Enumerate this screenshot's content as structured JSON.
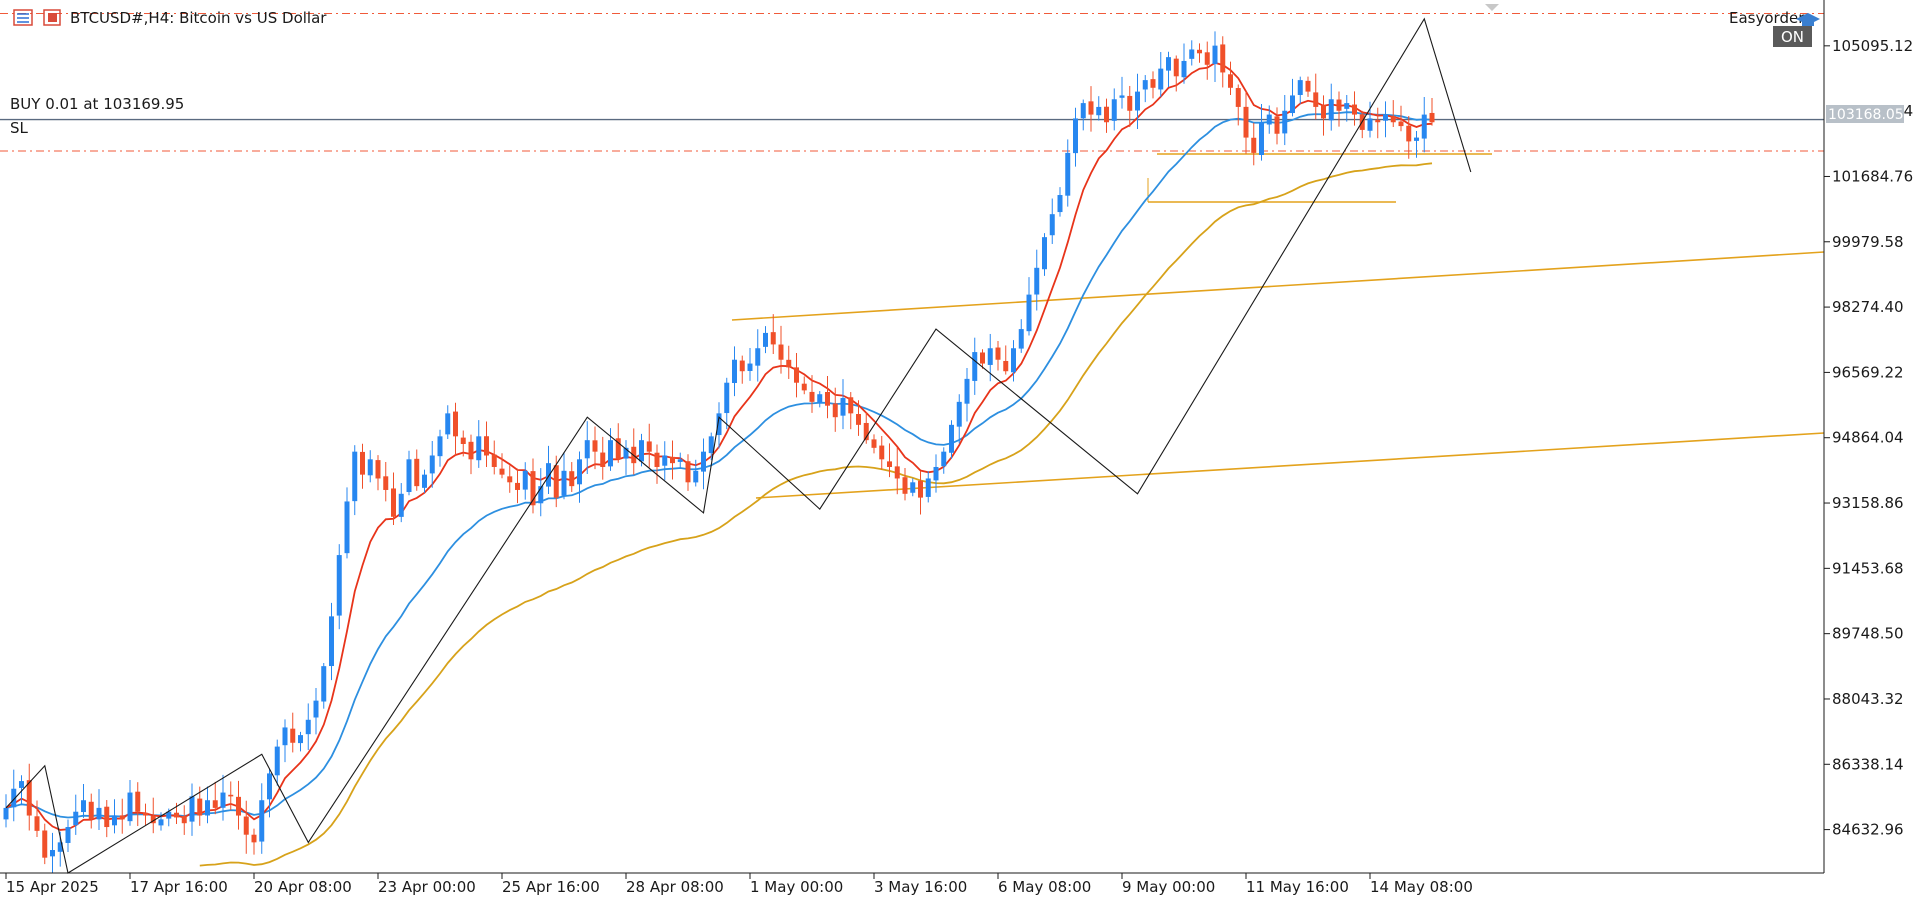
{
  "header": {
    "symbol_title": "BTCUSD#,H4:  Bitcoin vs US Dollar",
    "ea_name": "Easyorder",
    "on_badge": "ON"
  },
  "order_lines": {
    "buy_label": "BUY 0.01 at 103169.95",
    "sl_label": "SL",
    "price_tag": "103168.05",
    "buy_price": 103169.95,
    "sl_price": 102350,
    "tp_price": 105940
  },
  "colors": {
    "bull": "#2787f0",
    "bear": "#f0502a",
    "ma_fast": "#e8341a",
    "ma_mid": "#2d8fe0",
    "ma_slow": "#d7a21a",
    "zigzag": "#1a1a1a",
    "channel": "#e3a21c",
    "order_line": "#5a6a80",
    "dashed": "#f05a3a"
  },
  "chart_data": {
    "type": "candlestick",
    "title": "BTCUSD#,H4:  Bitcoin vs US Dollar",
    "ylim": [
      83500,
      105900
    ],
    "y_ticks": [
      "105095.12",
      "101684.76",
      "99979.58",
      "98274.40",
      "96569.22",
      "94864.04",
      "93158.86",
      "91453.68",
      "89748.50",
      "88043.32",
      "86338.14",
      "84632.96"
    ],
    "y_tick_partial": "103390.04",
    "x_ticks": [
      "15 Apr 2025",
      "17 Apr 16:00",
      "20 Apr 08:00",
      "23 Apr 00:00",
      "25 Apr 16:00",
      "28 Apr 08:00",
      "1 May 00:00",
      "3 May 16:00",
      "6 May 08:00",
      "9 May 00:00",
      "11 May 16:00",
      "14 May 08:00"
    ],
    "x_tick_index": [
      0,
      16,
      32,
      48,
      64,
      80,
      96,
      112,
      128,
      144,
      160,
      176
    ],
    "candle_close_keys": [
      85200,
      85700,
      85900,
      85000,
      84600,
      83900,
      84100,
      84300,
      84700,
      85100,
      85400,
      84900,
      85200,
      84700,
      85000,
      84900,
      85600,
      85100,
      85000,
      84800,
      84900,
      85100,
      84950,
      84800,
      85500,
      85000,
      85400,
      85200,
      85600,
      85500,
      85000,
      84500,
      84300,
      85400,
      86100,
      86800,
      87300,
      86900,
      87100,
      87500,
      88000,
      88900,
      90200,
      91800,
      93200,
      94500,
      93900,
      94300,
      93800,
      93500,
      92800,
      93400,
      94300,
      93600,
      93900,
      94400,
      94900,
      95500,
      94900,
      94700,
      94300,
      94900,
      94400,
      94100,
      93900,
      93700,
      93500,
      94000,
      93100,
      93600,
      94200,
      93300,
      94000,
      93600,
      94300,
      94800,
      94500,
      94100,
      94800,
      94300,
      94600,
      94200,
      94800,
      94500,
      94100,
      94400,
      94200,
      94300,
      93700,
      94000,
      94500,
      94900,
      95500,
      96300,
      96900,
      96600,
      96800,
      97200,
      97600,
      97300,
      96900,
      96700,
      96300,
      96100,
      95800,
      96000,
      95700,
      95400,
      95900,
      95500,
      95200,
      94800,
      94600,
      94300,
      94100,
      93800,
      93400,
      93700,
      93300,
      93800,
      94100,
      94500,
      95200,
      95800,
      96400,
      97100,
      96800,
      97200,
      96900,
      96600,
      97200,
      97700,
      98600,
      99300,
      100100,
      100700,
      101200,
      102300,
      103200,
      103600,
      103300,
      103500,
      103100,
      103700,
      103800,
      103400,
      103900,
      104200,
      104000,
      104500,
      104800,
      104300,
      104700,
      105000,
      104900,
      104600,
      105100,
      104400,
      104000,
      103500,
      102700,
      102300,
      103100,
      103300,
      102800,
      103400,
      103800,
      104200,
      103900,
      103500,
      103200,
      103700,
      103400,
      103600,
      103300,
      102900,
      103200,
      103100,
      103300,
      103100,
      103000,
      102600,
      102700,
      103300,
      103100
    ],
    "zigzag_points": [
      {
        "i": 0,
        "v": 85200
      },
      {
        "i": 5,
        "v": 86300
      },
      {
        "i": 8,
        "v": 83500
      },
      {
        "i": 33,
        "v": 86600
      },
      {
        "i": 39,
        "v": 84300
      },
      {
        "i": 75,
        "v": 95400
      },
      {
        "i": 90,
        "v": 92900
      },
      {
        "i": 92,
        "v": 95400
      },
      {
        "i": 105,
        "v": 93000
      },
      {
        "i": 120,
        "v": 97700
      },
      {
        "i": 146,
        "v": 93400
      },
      {
        "i": 183,
        "v": 105800
      },
      {
        "i": 189,
        "v": 101800
      }
    ],
    "series": [
      {
        "name": "",
        "kind": "ma_fast"
      },
      {
        "name": "",
        "kind": "ma_mid"
      },
      {
        "name": "",
        "kind": "ma_slow"
      }
    ]
  }
}
